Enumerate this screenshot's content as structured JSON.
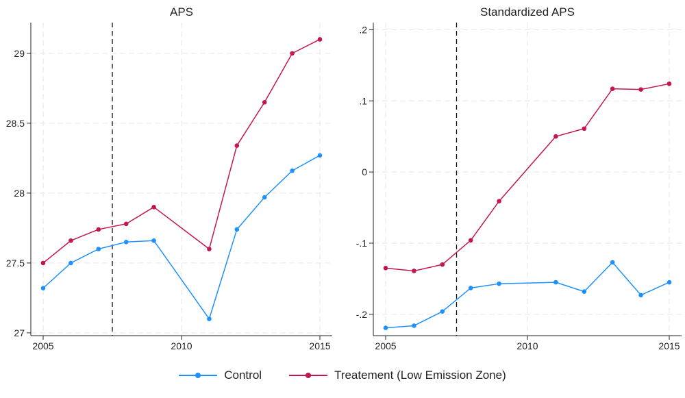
{
  "colors": {
    "control": "#1e90ff",
    "treatment": "#c4164f",
    "grid": "#e6e6e6",
    "axis": "#222222"
  },
  "legend": {
    "position": "bottom",
    "items": [
      {
        "label": "Control"
      },
      {
        "label": "Treatement (Low Emission Zone)"
      }
    ]
  },
  "chart_data": [
    {
      "type": "line",
      "title": "APS",
      "xlabel": "",
      "ylabel": "",
      "xlim": [
        2005,
        2015
      ],
      "ylim": [
        26.98,
        29.22
      ],
      "xticks": [
        2005,
        2010,
        2015
      ],
      "xtick_labels": [
        "2005",
        "2010",
        "2015"
      ],
      "yticks": [
        27,
        27.5,
        28,
        28.5,
        29
      ],
      "ytick_labels": [
        "27",
        "27.5",
        "28",
        "28.5",
        "29"
      ],
      "grid": true,
      "vline": 2007.5,
      "series": [
        {
          "name": "Control",
          "color": "#1e90ff",
          "x": [
            2005,
            2006,
            2007,
            2008,
            2009,
            2011,
            2012,
            2013,
            2014,
            2015
          ],
          "y": [
            27.32,
            27.5,
            27.6,
            27.65,
            27.66,
            27.1,
            27.74,
            27.97,
            28.16,
            28.27
          ]
        },
        {
          "name": "Treatement (Low Emission Zone)",
          "color": "#c4164f",
          "x": [
            2005,
            2006,
            2007,
            2008,
            2009,
            2011,
            2012,
            2013,
            2014,
            2015
          ],
          "y": [
            27.5,
            27.66,
            27.74,
            27.78,
            27.9,
            27.6,
            28.34,
            28.65,
            29.0,
            29.1
          ]
        }
      ]
    },
    {
      "type": "line",
      "title": "Standardized APS",
      "xlabel": "",
      "ylabel": "",
      "xlim": [
        2005,
        2015
      ],
      "ylim": [
        -0.23,
        0.21
      ],
      "xticks": [
        2005,
        2010,
        2015
      ],
      "xtick_labels": [
        "2005",
        "2010",
        "2015"
      ],
      "yticks": [
        -0.2,
        -0.1,
        0,
        0.1,
        0.2
      ],
      "ytick_labels": [
        "-.2",
        "-.1",
        "0",
        ".1",
        ".2"
      ],
      "grid": true,
      "vline": 2007.5,
      "series": [
        {
          "name": "Control",
          "color": "#1e90ff",
          "x": [
            2005,
            2006,
            2007,
            2008,
            2009,
            2011,
            2012,
            2013,
            2014,
            2015
          ],
          "y": [
            -0.219,
            -0.216,
            -0.196,
            -0.163,
            -0.157,
            -0.155,
            -0.168,
            -0.127,
            -0.173,
            -0.155
          ]
        },
        {
          "name": "Treatement (Low Emission Zone)",
          "color": "#c4164f",
          "x": [
            2005,
            2006,
            2007,
            2008,
            2009,
            2011,
            2012,
            2013,
            2014,
            2015
          ],
          "y": [
            -0.135,
            -0.139,
            -0.13,
            -0.096,
            -0.041,
            0.05,
            0.061,
            0.117,
            0.116,
            0.124
          ]
        }
      ]
    }
  ]
}
